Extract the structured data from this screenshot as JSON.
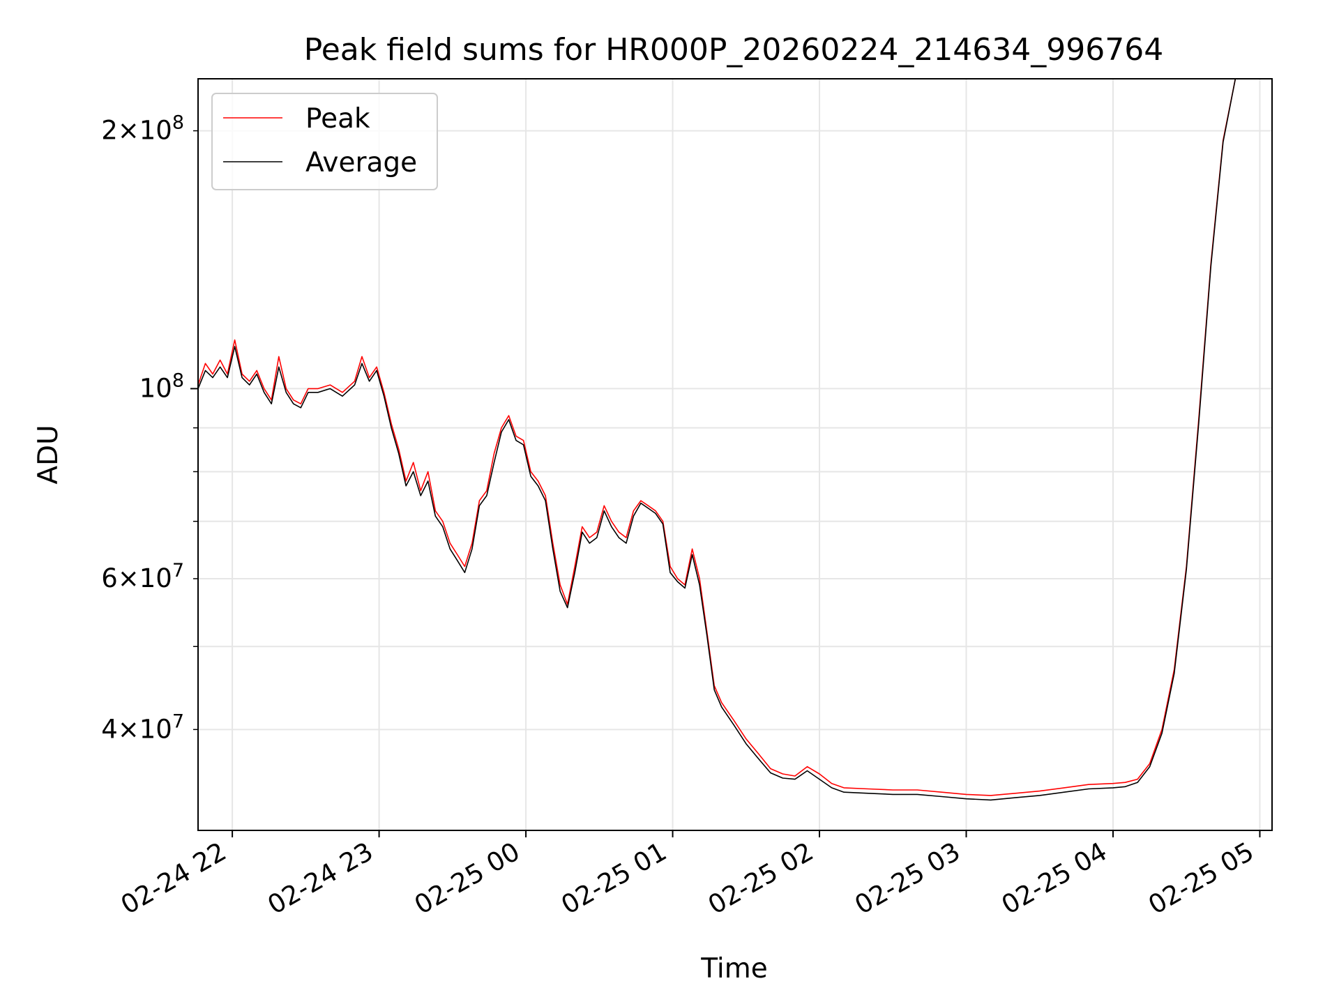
{
  "chart_data": {
    "type": "line",
    "title": "Peak field sums for HR000P_20260224_214634_996764",
    "xlabel": "Time",
    "ylabel": "ADU",
    "yscale": "log",
    "grid": true,
    "legend_position": "upper-left",
    "xlim": [
      "2026-02-24 21:46",
      "2026-02-25 05:05"
    ],
    "ylim": [
      30500000,
      230000000
    ],
    "x_ticks": [
      {
        "value": "2026-02-24 22:00",
        "label": "02-24 22"
      },
      {
        "value": "2026-02-24 23:00",
        "label": "02-24 23"
      },
      {
        "value": "2026-02-25 00:00",
        "label": "02-25 00"
      },
      {
        "value": "2026-02-25 01:00",
        "label": "02-25 01"
      },
      {
        "value": "2026-02-25 02:00",
        "label": "02-25 02"
      },
      {
        "value": "2026-02-25 03:00",
        "label": "02-25 03"
      },
      {
        "value": "2026-02-25 04:00",
        "label": "02-25 04"
      },
      {
        "value": "2026-02-25 05:00",
        "label": "02-25 05"
      }
    ],
    "y_major_ticks": [
      {
        "value": 100000000,
        "base": "10",
        "exp": "8"
      }
    ],
    "y_minor_ticks": [
      {
        "value": 40000000,
        "mant": "4",
        "exp": "7"
      },
      {
        "value": 60000000,
        "mant": "6",
        "exp": "7"
      },
      {
        "value": 200000000,
        "mant": "2",
        "exp": "8"
      }
    ],
    "y_minor_unlabeled": [
      30000000,
      50000000,
      70000000,
      80000000,
      90000000
    ],
    "legend": [
      {
        "name": "Peak",
        "color": "#ff0000"
      },
      {
        "name": "Average",
        "color": "#000000"
      }
    ],
    "series": [
      {
        "name": "Peak",
        "color": "#ff0000",
        "points": [
          [
            "2026-02-24 21:46",
            101000000
          ],
          [
            "2026-02-24 21:49",
            107000000
          ],
          [
            "2026-02-24 21:52",
            104000000
          ],
          [
            "2026-02-24 21:55",
            108000000
          ],
          [
            "2026-02-24 21:58",
            104000000
          ],
          [
            "2026-02-24 22:01",
            114000000
          ],
          [
            "2026-02-24 22:04",
            104000000
          ],
          [
            "2026-02-24 22:07",
            102000000
          ],
          [
            "2026-02-24 22:10",
            105000000
          ],
          [
            "2026-02-24 22:13",
            100000000
          ],
          [
            "2026-02-24 22:16",
            97000000
          ],
          [
            "2026-02-24 22:19",
            109000000
          ],
          [
            "2026-02-24 22:22",
            100000000
          ],
          [
            "2026-02-24 22:25",
            97000000
          ],
          [
            "2026-02-24 22:28",
            96000000
          ],
          [
            "2026-02-24 22:31",
            100000000
          ],
          [
            "2026-02-24 22:35",
            100000000
          ],
          [
            "2026-02-24 22:40",
            101000000
          ],
          [
            "2026-02-24 22:45",
            99000000
          ],
          [
            "2026-02-24 22:50",
            102000000
          ],
          [
            "2026-02-24 22:53",
            109000000
          ],
          [
            "2026-02-24 22:56",
            103000000
          ],
          [
            "2026-02-24 22:59",
            106000000
          ],
          [
            "2026-02-24 23:02",
            99000000
          ],
          [
            "2026-02-24 23:05",
            91000000
          ],
          [
            "2026-02-24 23:08",
            85000000
          ],
          [
            "2026-02-24 23:11",
            78000000
          ],
          [
            "2026-02-24 23:14",
            82000000
          ],
          [
            "2026-02-24 23:17",
            76000000
          ],
          [
            "2026-02-24 23:20",
            80000000
          ],
          [
            "2026-02-24 23:23",
            72000000
          ],
          [
            "2026-02-24 23:26",
            70000000
          ],
          [
            "2026-02-24 23:29",
            66000000
          ],
          [
            "2026-02-24 23:32",
            64000000
          ],
          [
            "2026-02-24 23:35",
            62000000
          ],
          [
            "2026-02-24 23:38",
            66000000
          ],
          [
            "2026-02-24 23:41",
            74000000
          ],
          [
            "2026-02-24 23:44",
            76000000
          ],
          [
            "2026-02-24 23:47",
            84000000
          ],
          [
            "2026-02-24 23:50",
            90000000
          ],
          [
            "2026-02-24 23:53",
            93000000
          ],
          [
            "2026-02-24 23:56",
            88000000
          ],
          [
            "2026-02-24 23:59",
            87000000
          ],
          [
            "2026-02-25 00:02",
            80000000
          ],
          [
            "2026-02-25 00:05",
            78000000
          ],
          [
            "2026-02-25 00:08",
            75000000
          ],
          [
            "2026-02-25 00:11",
            66000000
          ],
          [
            "2026-02-25 00:14",
            59000000
          ],
          [
            "2026-02-25 00:17",
            56000000
          ],
          [
            "2026-02-25 00:20",
            62000000
          ],
          [
            "2026-02-25 00:23",
            69000000
          ],
          [
            "2026-02-25 00:26",
            67000000
          ],
          [
            "2026-02-25 00:29",
            68000000
          ],
          [
            "2026-02-25 00:32",
            73000000
          ],
          [
            "2026-02-25 00:35",
            70000000
          ],
          [
            "2026-02-25 00:38",
            68000000
          ],
          [
            "2026-02-25 00:41",
            67000000
          ],
          [
            "2026-02-25 00:44",
            72000000
          ],
          [
            "2026-02-25 00:47",
            74000000
          ],
          [
            "2026-02-25 00:50",
            73000000
          ],
          [
            "2026-02-25 00:53",
            72000000
          ],
          [
            "2026-02-25 00:56",
            70000000
          ],
          [
            "2026-02-25 00:59",
            62000000
          ],
          [
            "2026-02-25 01:02",
            60000000
          ],
          [
            "2026-02-25 01:05",
            59000000
          ],
          [
            "2026-02-25 01:08",
            65000000
          ],
          [
            "2026-02-25 01:11",
            60000000
          ],
          [
            "2026-02-25 01:14",
            52000000
          ],
          [
            "2026-02-25 01:17",
            45000000
          ],
          [
            "2026-02-25 01:20",
            43000000
          ],
          [
            "2026-02-25 01:25",
            41000000
          ],
          [
            "2026-02-25 01:30",
            39000000
          ],
          [
            "2026-02-25 01:35",
            37500000
          ],
          [
            "2026-02-25 01:40",
            36000000
          ],
          [
            "2026-02-25 01:45",
            35500000
          ],
          [
            "2026-02-25 01:50",
            35300000
          ],
          [
            "2026-02-25 01:55",
            36200000
          ],
          [
            "2026-02-25 02:00",
            35500000
          ],
          [
            "2026-02-25 02:05",
            34600000
          ],
          [
            "2026-02-25 02:10",
            34200000
          ],
          [
            "2026-02-25 02:20",
            34100000
          ],
          [
            "2026-02-25 02:30",
            34000000
          ],
          [
            "2026-02-25 02:40",
            34000000
          ],
          [
            "2026-02-25 02:50",
            33800000
          ],
          [
            "2026-02-25 03:00",
            33600000
          ],
          [
            "2026-02-25 03:10",
            33500000
          ],
          [
            "2026-02-25 03:20",
            33700000
          ],
          [
            "2026-02-25 03:30",
            33900000
          ],
          [
            "2026-02-25 03:40",
            34200000
          ],
          [
            "2026-02-25 03:50",
            34500000
          ],
          [
            "2026-02-25 04:00",
            34600000
          ],
          [
            "2026-02-25 04:05",
            34700000
          ],
          [
            "2026-02-25 04:10",
            35000000
          ],
          [
            "2026-02-25 04:15",
            36500000
          ],
          [
            "2026-02-25 04:20",
            40000000
          ],
          [
            "2026-02-25 04:25",
            47000000
          ],
          [
            "2026-02-25 04:30",
            62000000
          ],
          [
            "2026-02-25 04:35",
            92000000
          ],
          [
            "2026-02-25 04:40",
            140000000
          ],
          [
            "2026-02-25 04:45",
            195000000
          ],
          [
            "2026-02-25 04:50",
            230000000
          ]
        ]
      },
      {
        "name": "Average",
        "color": "#000000",
        "points": [
          [
            "2026-02-24 21:46",
            100000000
          ],
          [
            "2026-02-24 21:49",
            105000000
          ],
          [
            "2026-02-24 21:52",
            103000000
          ],
          [
            "2026-02-24 21:55",
            106000000
          ],
          [
            "2026-02-24 21:58",
            103000000
          ],
          [
            "2026-02-24 22:01",
            112000000
          ],
          [
            "2026-02-24 22:04",
            103000000
          ],
          [
            "2026-02-24 22:07",
            101000000
          ],
          [
            "2026-02-24 22:10",
            104000000
          ],
          [
            "2026-02-24 22:13",
            99000000
          ],
          [
            "2026-02-24 22:16",
            96000000
          ],
          [
            "2026-02-24 22:19",
            106000000
          ],
          [
            "2026-02-24 22:22",
            99000000
          ],
          [
            "2026-02-24 22:25",
            96000000
          ],
          [
            "2026-02-24 22:28",
            95000000
          ],
          [
            "2026-02-24 22:31",
            99000000
          ],
          [
            "2026-02-24 22:35",
            99000000
          ],
          [
            "2026-02-24 22:40",
            100000000
          ],
          [
            "2026-02-24 22:45",
            98000000
          ],
          [
            "2026-02-24 22:50",
            101000000
          ],
          [
            "2026-02-24 22:53",
            107000000
          ],
          [
            "2026-02-24 22:56",
            102000000
          ],
          [
            "2026-02-24 22:59",
            105000000
          ],
          [
            "2026-02-24 23:02",
            98000000
          ],
          [
            "2026-02-24 23:05",
            90000000
          ],
          [
            "2026-02-24 23:08",
            84000000
          ],
          [
            "2026-02-24 23:11",
            77000000
          ],
          [
            "2026-02-24 23:14",
            80000000
          ],
          [
            "2026-02-24 23:17",
            75000000
          ],
          [
            "2026-02-24 23:20",
            78000000
          ],
          [
            "2026-02-24 23:23",
            71000000
          ],
          [
            "2026-02-24 23:26",
            69000000
          ],
          [
            "2026-02-24 23:29",
            65000000
          ],
          [
            "2026-02-24 23:32",
            63000000
          ],
          [
            "2026-02-24 23:35",
            61000000
          ],
          [
            "2026-02-24 23:38",
            65000000
          ],
          [
            "2026-02-24 23:41",
            73000000
          ],
          [
            "2026-02-24 23:44",
            75000000
          ],
          [
            "2026-02-24 23:47",
            82000000
          ],
          [
            "2026-02-24 23:50",
            89000000
          ],
          [
            "2026-02-24 23:53",
            92000000
          ],
          [
            "2026-02-24 23:56",
            87000000
          ],
          [
            "2026-02-24 23:59",
            86000000
          ],
          [
            "2026-02-25 00:02",
            79000000
          ],
          [
            "2026-02-25 00:05",
            77000000
          ],
          [
            "2026-02-25 00:08",
            74000000
          ],
          [
            "2026-02-25 00:11",
            65000000
          ],
          [
            "2026-02-25 00:14",
            58000000
          ],
          [
            "2026-02-25 00:17",
            55500000
          ],
          [
            "2026-02-25 00:20",
            61000000
          ],
          [
            "2026-02-25 00:23",
            68000000
          ],
          [
            "2026-02-25 00:26",
            66000000
          ],
          [
            "2026-02-25 00:29",
            67000000
          ],
          [
            "2026-02-25 00:32",
            72000000
          ],
          [
            "2026-02-25 00:35",
            69000000
          ],
          [
            "2026-02-25 00:38",
            67000000
          ],
          [
            "2026-02-25 00:41",
            66000000
          ],
          [
            "2026-02-25 00:44",
            71000000
          ],
          [
            "2026-02-25 00:47",
            73500000
          ],
          [
            "2026-02-25 00:50",
            72500000
          ],
          [
            "2026-02-25 00:53",
            71500000
          ],
          [
            "2026-02-25 00:56",
            69500000
          ],
          [
            "2026-02-25 00:59",
            61000000
          ],
          [
            "2026-02-25 01:02",
            59500000
          ],
          [
            "2026-02-25 01:05",
            58500000
          ],
          [
            "2026-02-25 01:08",
            64000000
          ],
          [
            "2026-02-25 01:11",
            59000000
          ],
          [
            "2026-02-25 01:14",
            51500000
          ],
          [
            "2026-02-25 01:17",
            44500000
          ],
          [
            "2026-02-25 01:20",
            42500000
          ],
          [
            "2026-02-25 01:25",
            40500000
          ],
          [
            "2026-02-25 01:30",
            38500000
          ],
          [
            "2026-02-25 01:35",
            37000000
          ],
          [
            "2026-02-25 01:40",
            35600000
          ],
          [
            "2026-02-25 01:45",
            35100000
          ],
          [
            "2026-02-25 01:50",
            35000000
          ],
          [
            "2026-02-25 01:55",
            35800000
          ],
          [
            "2026-02-25 02:00",
            35000000
          ],
          [
            "2026-02-25 02:05",
            34200000
          ],
          [
            "2026-02-25 02:10",
            33800000
          ],
          [
            "2026-02-25 02:20",
            33700000
          ],
          [
            "2026-02-25 02:30",
            33600000
          ],
          [
            "2026-02-25 02:40",
            33600000
          ],
          [
            "2026-02-25 02:50",
            33400000
          ],
          [
            "2026-02-25 03:00",
            33200000
          ],
          [
            "2026-02-25 03:10",
            33100000
          ],
          [
            "2026-02-25 03:20",
            33300000
          ],
          [
            "2026-02-25 03:30",
            33500000
          ],
          [
            "2026-02-25 03:40",
            33800000
          ],
          [
            "2026-02-25 03:50",
            34100000
          ],
          [
            "2026-02-25 04:00",
            34200000
          ],
          [
            "2026-02-25 04:05",
            34300000
          ],
          [
            "2026-02-25 04:10",
            34700000
          ],
          [
            "2026-02-25 04:15",
            36200000
          ],
          [
            "2026-02-25 04:20",
            39600000
          ],
          [
            "2026-02-25 04:25",
            46500000
          ],
          [
            "2026-02-25 04:30",
            61500000
          ],
          [
            "2026-02-25 04:35",
            91000000
          ],
          [
            "2026-02-25 04:40",
            139000000
          ],
          [
            "2026-02-25 04:45",
            194000000
          ],
          [
            "2026-02-25 04:50",
            230000000
          ]
        ]
      }
    ]
  }
}
